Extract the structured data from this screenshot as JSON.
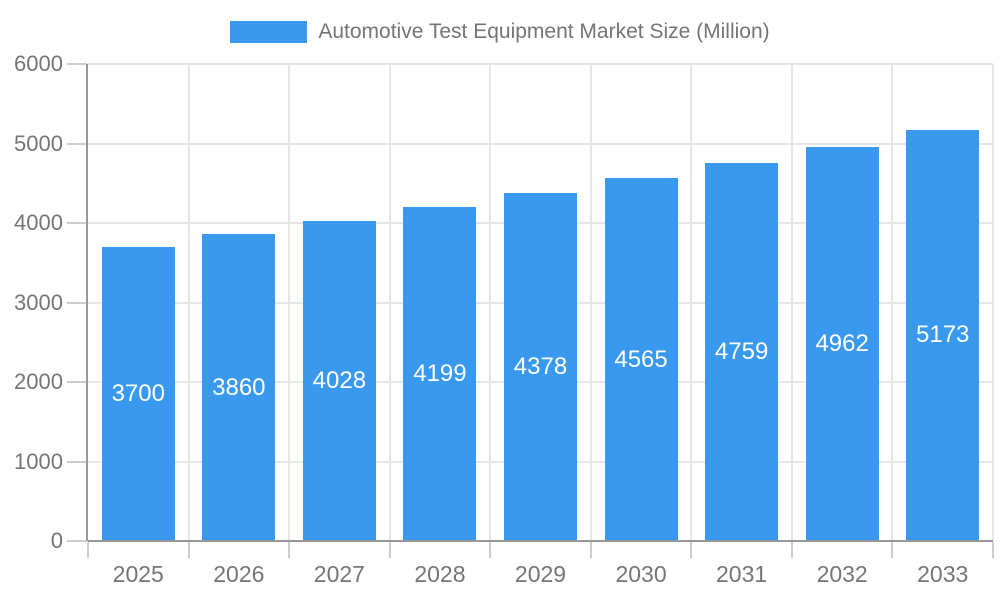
{
  "chart_data": {
    "type": "bar",
    "title": "Automotive Test Equipment Market Size (Million)",
    "categories": [
      "2025",
      "2026",
      "2027",
      "2028",
      "2029",
      "2030",
      "2031",
      "2032",
      "2033"
    ],
    "values": [
      3700,
      3860,
      4028,
      4199,
      4378,
      4565,
      4759,
      4962,
      5173
    ],
    "series_name": "Automotive Test Equipment Market Size (Million)",
    "xlabel": "",
    "ylabel": "",
    "ylim": [
      0,
      6000
    ],
    "yticks": [
      0,
      1000,
      2000,
      3000,
      4000,
      5000,
      6000
    ],
    "grid": "on",
    "legend_position": "top-center",
    "value_label_position": "inside-center"
  },
  "colors": {
    "bar": "#3899EE",
    "bar_value_label": "#FFFFFF",
    "legend_swatch": "#3899EE",
    "title_text": "#757575",
    "axis_text": "#757575",
    "grid_line": "#E6E6E6",
    "tick_line": "#CCCCCC",
    "axis_line": "#999999",
    "background": "#FFFFFF"
  }
}
